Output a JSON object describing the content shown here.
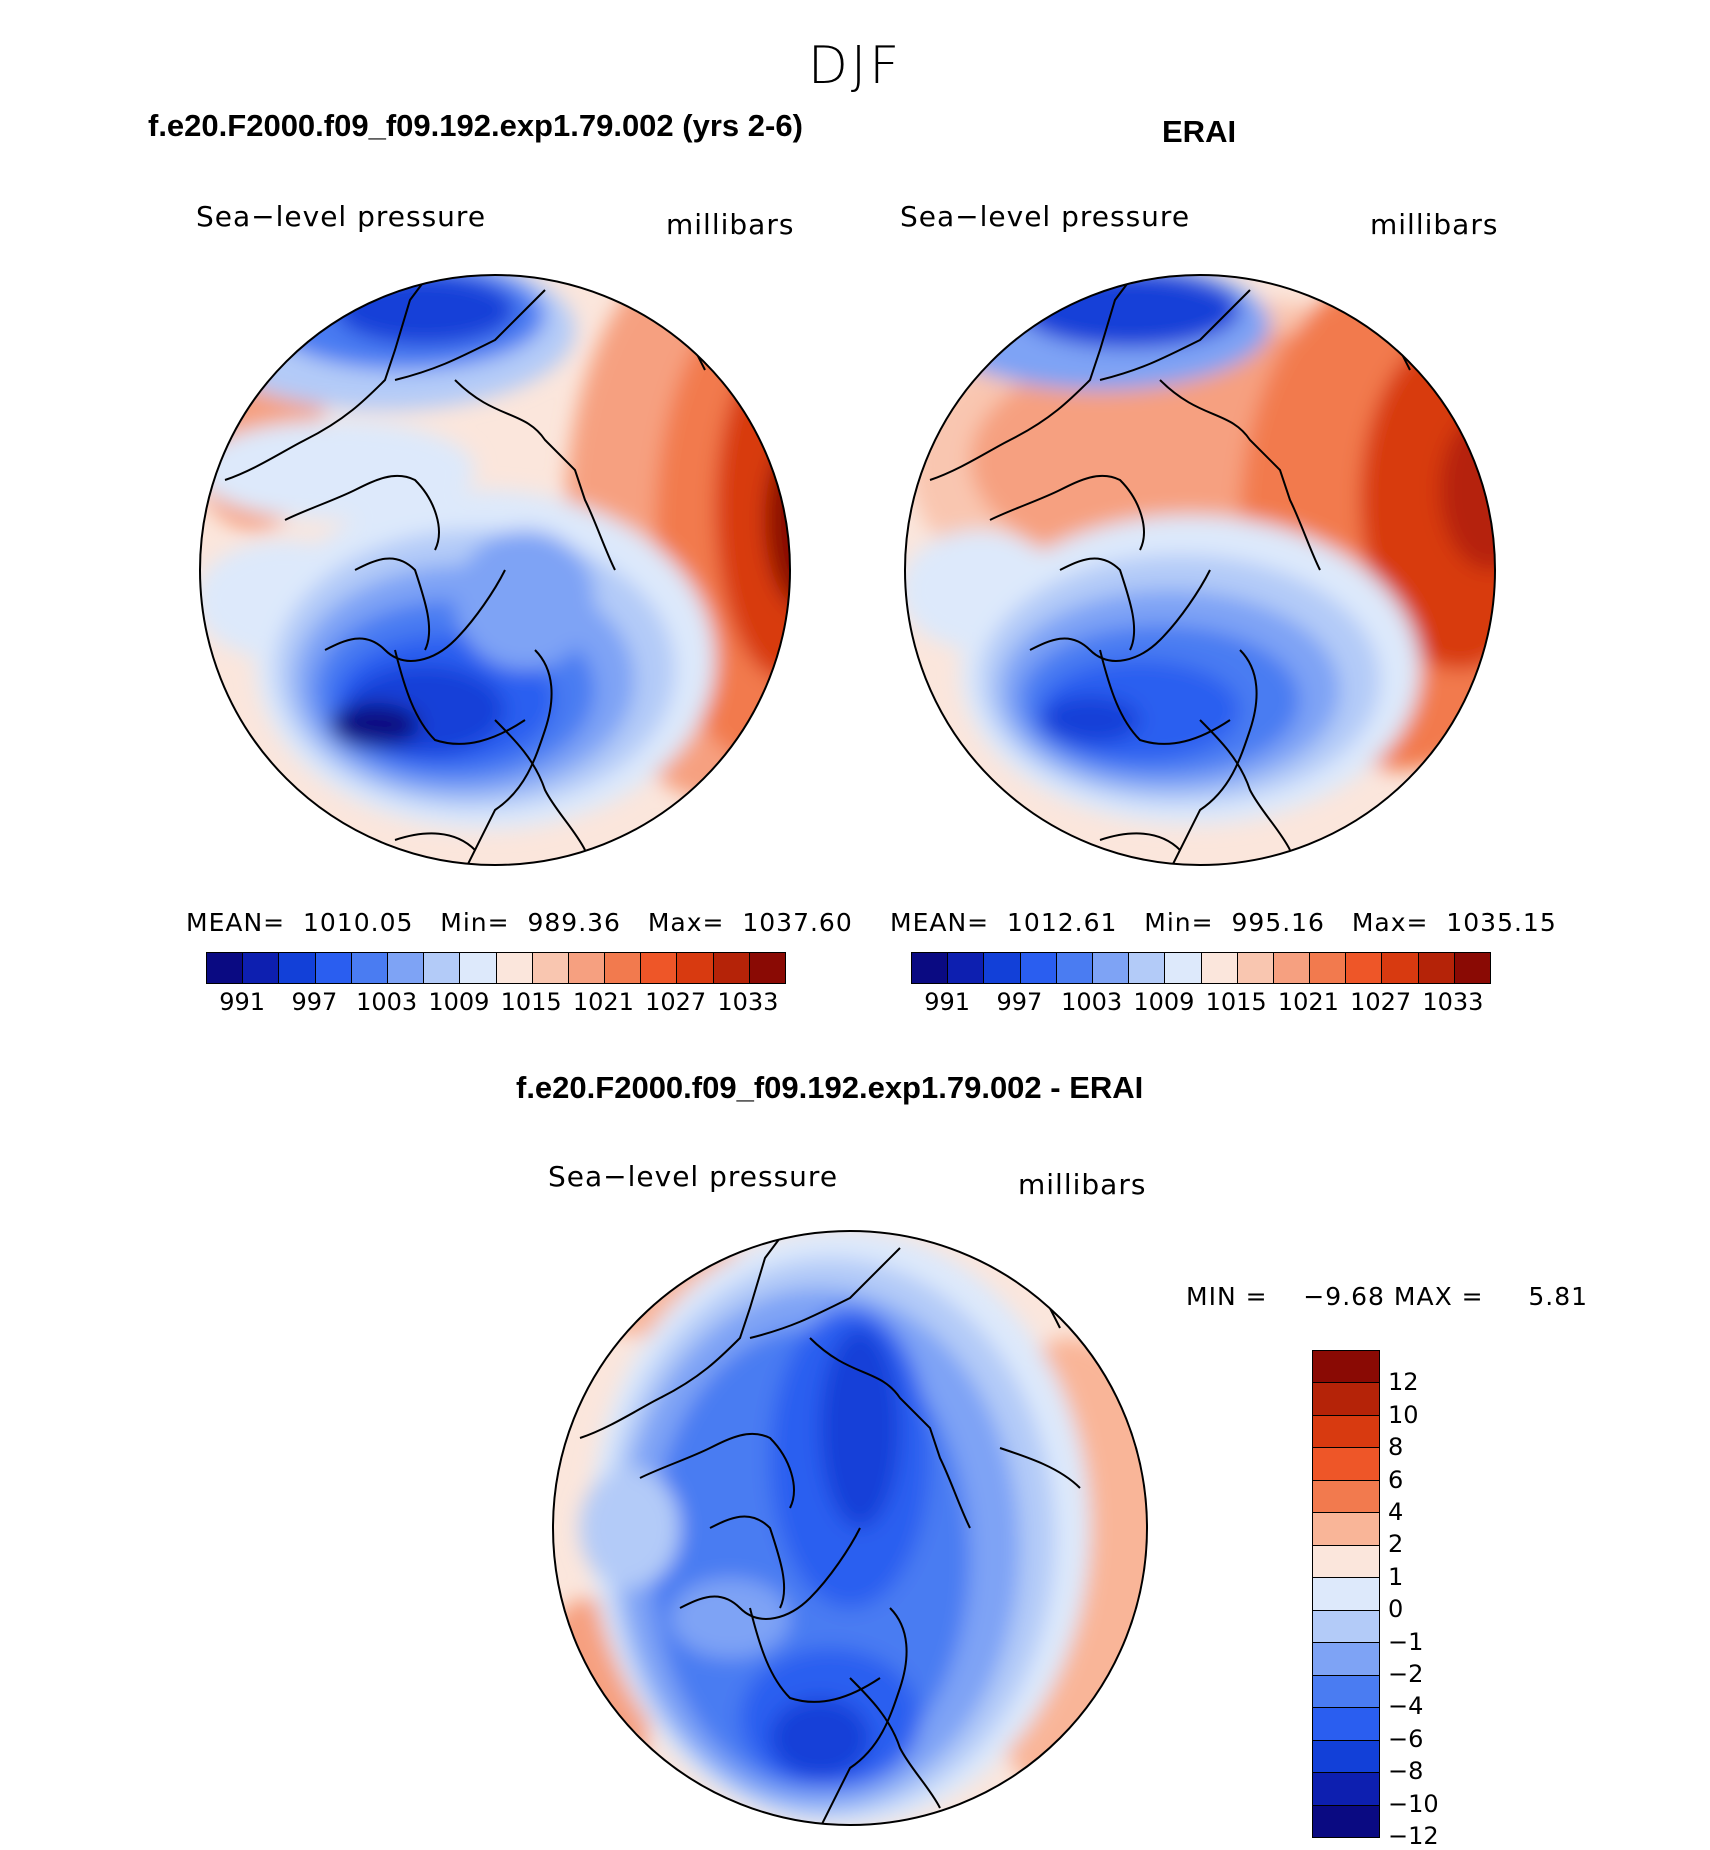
{
  "season": "DJF",
  "colors": {
    "abs_scale": [
      "#0a0a82",
      "#0d1fb0",
      "#1240d8",
      "#2a5ef0",
      "#4a7cf2",
      "#7ea3f5",
      "#b3cbf8",
      "#dde9fb",
      "#fbe6dc",
      "#f9c6b0",
      "#f6a080",
      "#f27a4e",
      "#ee5628",
      "#d83a10",
      "#b52308",
      "#8a0a04"
    ],
    "diff_scale": [
      "#8a0a04",
      "#b52308",
      "#d83a10",
      "#ee5628",
      "#f27a4e",
      "#f9b598",
      "#fbe6dc",
      "#dde9fb",
      "#b3cbf8",
      "#7ea3f5",
      "#4a7cf2",
      "#2a5ef0",
      "#1240d8",
      "#0d1fb0",
      "#0a0a82"
    ]
  },
  "panels": {
    "model": {
      "title": "f.e20.F2000.f09_f09.192.exp1.79.002 (yrs 2-6)",
      "variable": "Sea−level pressure",
      "units": "millibars",
      "mean_label": "MEAN=",
      "mean": "1010.05",
      "min_label": "Min=",
      "min": "989.36",
      "max_label": "Max=",
      "max": "1037.60",
      "ticks": [
        "991",
        "997",
        "1003",
        "1009",
        "1015",
        "1021",
        "1027",
        "1033"
      ]
    },
    "obs": {
      "title": "ERAI",
      "variable": "Sea−level pressure",
      "units": "millibars",
      "mean_label": "MEAN=",
      "mean": "1012.61",
      "min_label": "Min=",
      "min": "995.16",
      "max_label": "Max=",
      "max": "1035.15",
      "ticks": [
        "991",
        "997",
        "1003",
        "1009",
        "1015",
        "1021",
        "1027",
        "1033"
      ]
    },
    "diff": {
      "title": "f.e20.F2000.f09_f09.192.exp1.79.002 - ERAI",
      "variable": "Sea−level pressure",
      "units": "millibars",
      "min_label": "MIN =",
      "min": "−9.68",
      "max_label": "MAX =",
      "max": "5.81",
      "ticks": [
        "12",
        "10",
        "8",
        "6",
        "4",
        "2",
        "1",
        "0",
        "−1",
        "−2",
        "−4",
        "−6",
        "−8",
        "−10",
        "−12"
      ]
    }
  }
}
